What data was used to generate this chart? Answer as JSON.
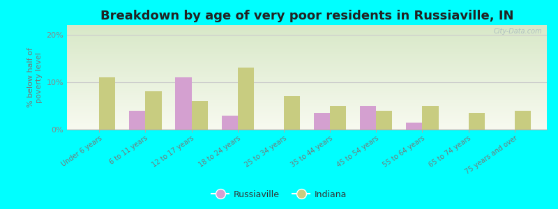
{
  "categories": [
    "Under 6 years",
    "6 to 11 years",
    "12 to 17 years",
    "18 to 24 years",
    "25 to 34 years",
    "35 to 44 years",
    "45 to 54 years",
    "55 to 64 years",
    "65 to 74 years",
    "75 years and over"
  ],
  "russiaville": [
    0,
    4.0,
    11.0,
    3.0,
    0,
    3.5,
    5.0,
    1.5,
    0,
    0
  ],
  "indiana": [
    11.0,
    8.0,
    6.0,
    13.0,
    7.0,
    5.0,
    4.0,
    5.0,
    3.5,
    4.0
  ],
  "russiaville_color": "#d4a0d0",
  "indiana_color": "#c8cc80",
  "title": "Breakdown by age of very poor residents in Russiaville, IN",
  "ylabel": "% below half of\npoverty level",
  "ylim": [
    0,
    22
  ],
  "yticks": [
    0,
    10,
    20
  ],
  "ytick_labels": [
    "0%",
    "10%",
    "20%"
  ],
  "background_color": "#00ffff",
  "plot_bg": "#e8f0d8",
  "title_fontsize": 13,
  "bar_width": 0.35
}
